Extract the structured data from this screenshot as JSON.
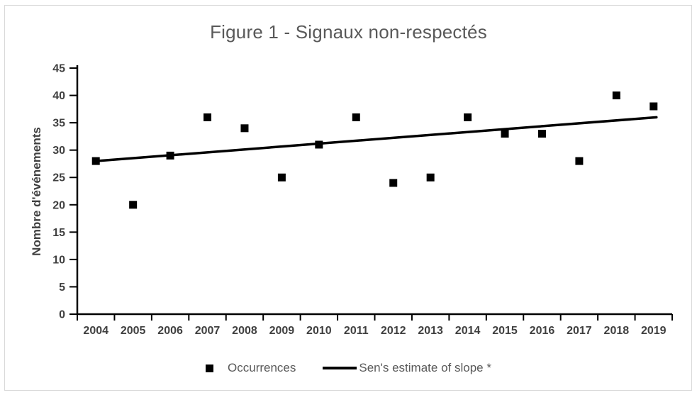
{
  "chart_data": {
    "type": "scatter",
    "title": "Figure 1 - Signaux non-respectés",
    "ylabel": "Nombre d'événements",
    "xlabel": "",
    "categories": [
      "2004",
      "2005",
      "2006",
      "2007",
      "2008",
      "2009",
      "2010",
      "2011",
      "2012",
      "2013",
      "2014",
      "2015",
      "2016",
      "2017",
      "2018",
      "2019"
    ],
    "ylim": [
      0,
      45
    ],
    "ytick_step": 5,
    "grid": false,
    "legend_position": "bottom",
    "series": [
      {
        "name": "Occurrences",
        "type": "scatter",
        "marker": "square",
        "color": "#000000",
        "values": [
          28,
          20,
          29,
          36,
          34,
          25,
          31,
          36,
          24,
          25,
          36,
          33,
          33,
          28,
          40,
          38
        ]
      },
      {
        "name": "Sen's estimate of slope *",
        "type": "line",
        "color": "#000000",
        "points": [
          {
            "x": "2004",
            "y": 28
          },
          {
            "x": "2019",
            "y": 36
          }
        ]
      }
    ],
    "colors": {
      "axis": "#000000",
      "marker": "#000000",
      "trend_line": "#000000",
      "tick_label": "#404040",
      "title": "#595959",
      "legend_text": "#595959",
      "figure_border": "#d9d9d9"
    }
  }
}
